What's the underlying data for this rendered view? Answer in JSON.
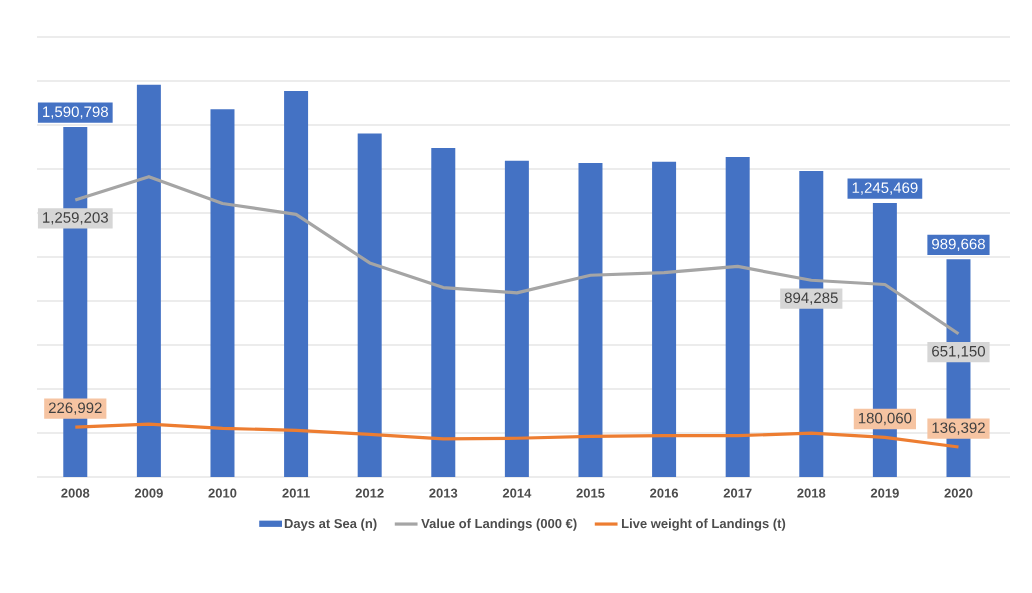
{
  "chart_data": {
    "type": "bar",
    "categories": [
      "2008",
      "2009",
      "2010",
      "2011",
      "2012",
      "2013",
      "2014",
      "2015",
      "2016",
      "2017",
      "2018",
      "2019",
      "2020"
    ],
    "series": [
      {
        "name": "Days at Sea (n)",
        "color": "#4472c4",
        "values": [
          1590798,
          1783000,
          1672000,
          1755000,
          1561000,
          1495000,
          1437000,
          1427000,
          1433000,
          1454000,
          1391000,
          1245469,
          989668
        ],
        "value_labels": [
          "1,590,798",
          null,
          null,
          null,
          null,
          null,
          null,
          null,
          null,
          null,
          null,
          "1,245,469",
          "989,668"
        ]
      },
      {
        "name": "Value of Landings (000 €)",
        "type": "line",
        "color": "#a5a5a5",
        "values": [
          1259203,
          1365000,
          1243000,
          1194000,
          973000,
          861000,
          837000,
          917000,
          929000,
          957000,
          894285,
          875000,
          651150
        ],
        "value_labels": [
          "1,259,203",
          null,
          null,
          null,
          null,
          null,
          null,
          null,
          null,
          null,
          "894,285",
          null,
          "651,150"
        ]
      },
      {
        "name": "Live weight of Landings (t)",
        "type": "line",
        "color": "#ed7d31",
        "values": [
          226992,
          240000,
          221000,
          212000,
          194000,
          173000,
          176000,
          185000,
          188000,
          188000,
          199000,
          180060,
          136392
        ],
        "value_labels": [
          "226,992",
          null,
          null,
          null,
          null,
          null,
          null,
          null,
          null,
          null,
          null,
          "180,060",
          "136,392"
        ]
      }
    ],
    "ylim": [
      0,
      2000000
    ],
    "yticks": [
      {
        "value": 0,
        "label": null
      },
      {
        "value": 200000,
        "label": null
      },
      {
        "value": 400000,
        "label": null
      },
      {
        "value": 600000,
        "label": null
      },
      {
        "value": 800000,
        "label": null
      },
      {
        "value": 1000000,
        "label": null
      },
      {
        "value": 1200000,
        "label": null
      },
      {
        "value": 1400000,
        "label": null
      },
      {
        "value": 1600000,
        "label": null
      },
      {
        "value": 1800000,
        "label": null
      },
      {
        "value": 2000000,
        "label": null
      }
    ],
    "grid": "y",
    "legend": "bottom",
    "tick_labels": "x"
  }
}
